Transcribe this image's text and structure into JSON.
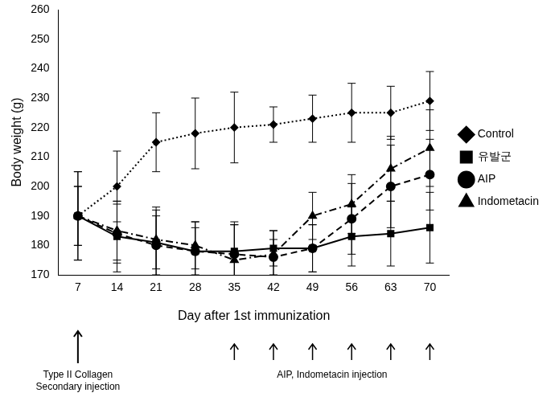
{
  "chart_data": {
    "type": "line",
    "xlabel": "Day after 1st immunization",
    "ylabel": "Body weight (g)",
    "categories": [
      7,
      14,
      21,
      28,
      35,
      42,
      49,
      56,
      63,
      70
    ],
    "ylim": [
      170,
      260
    ],
    "yticks": [
      170,
      180,
      190,
      200,
      210,
      220,
      230,
      240,
      250,
      260
    ],
    "grid": false,
    "legend": "right",
    "series": [
      {
        "name": "Control",
        "color": "#000000",
        "marker": "diamond",
        "line_style": "dotted",
        "values": [
          190,
          200,
          215,
          218,
          220,
          221,
          223,
          225,
          225,
          229
        ],
        "errors": [
          15,
          12,
          10,
          12,
          12,
          6,
          8,
          10,
          9,
          10
        ]
      },
      {
        "name": "유발군",
        "color": "#000000",
        "marker": "square",
        "line_style": "solid",
        "values": [
          190,
          183,
          181,
          178,
          178,
          179,
          179,
          183,
          184,
          186
        ],
        "errors": [
          10,
          12,
          12,
          10,
          10,
          6,
          8,
          10,
          11,
          12
        ]
      },
      {
        "name": "AIP",
        "color": "#000000",
        "marker": "circle",
        "line_style": "dashed",
        "values": [
          190,
          184,
          180,
          178,
          177,
          176,
          179,
          189,
          200,
          204
        ],
        "errors": [
          10,
          10,
          10,
          8,
          10,
          6,
          8,
          12,
          14,
          12
        ]
      },
      {
        "name": "Indometacin",
        "color": "#000000",
        "marker": "triangle",
        "line_style": "dashdot",
        "values": [
          190,
          185,
          182,
          180,
          175,
          177,
          190,
          194,
          206,
          213
        ],
        "errors": [
          15,
          10,
          10,
          8,
          12,
          8,
          8,
          10,
          11,
          13
        ]
      }
    ],
    "annotations": [
      {
        "text_lines": [
          "Type II Collagen",
          "Secondary injection"
        ],
        "at": [
          7
        ]
      },
      {
        "text_lines": [
          "AIP, Indometacin injection"
        ],
        "at": [
          35,
          42,
          49,
          56,
          63,
          70
        ]
      }
    ]
  }
}
